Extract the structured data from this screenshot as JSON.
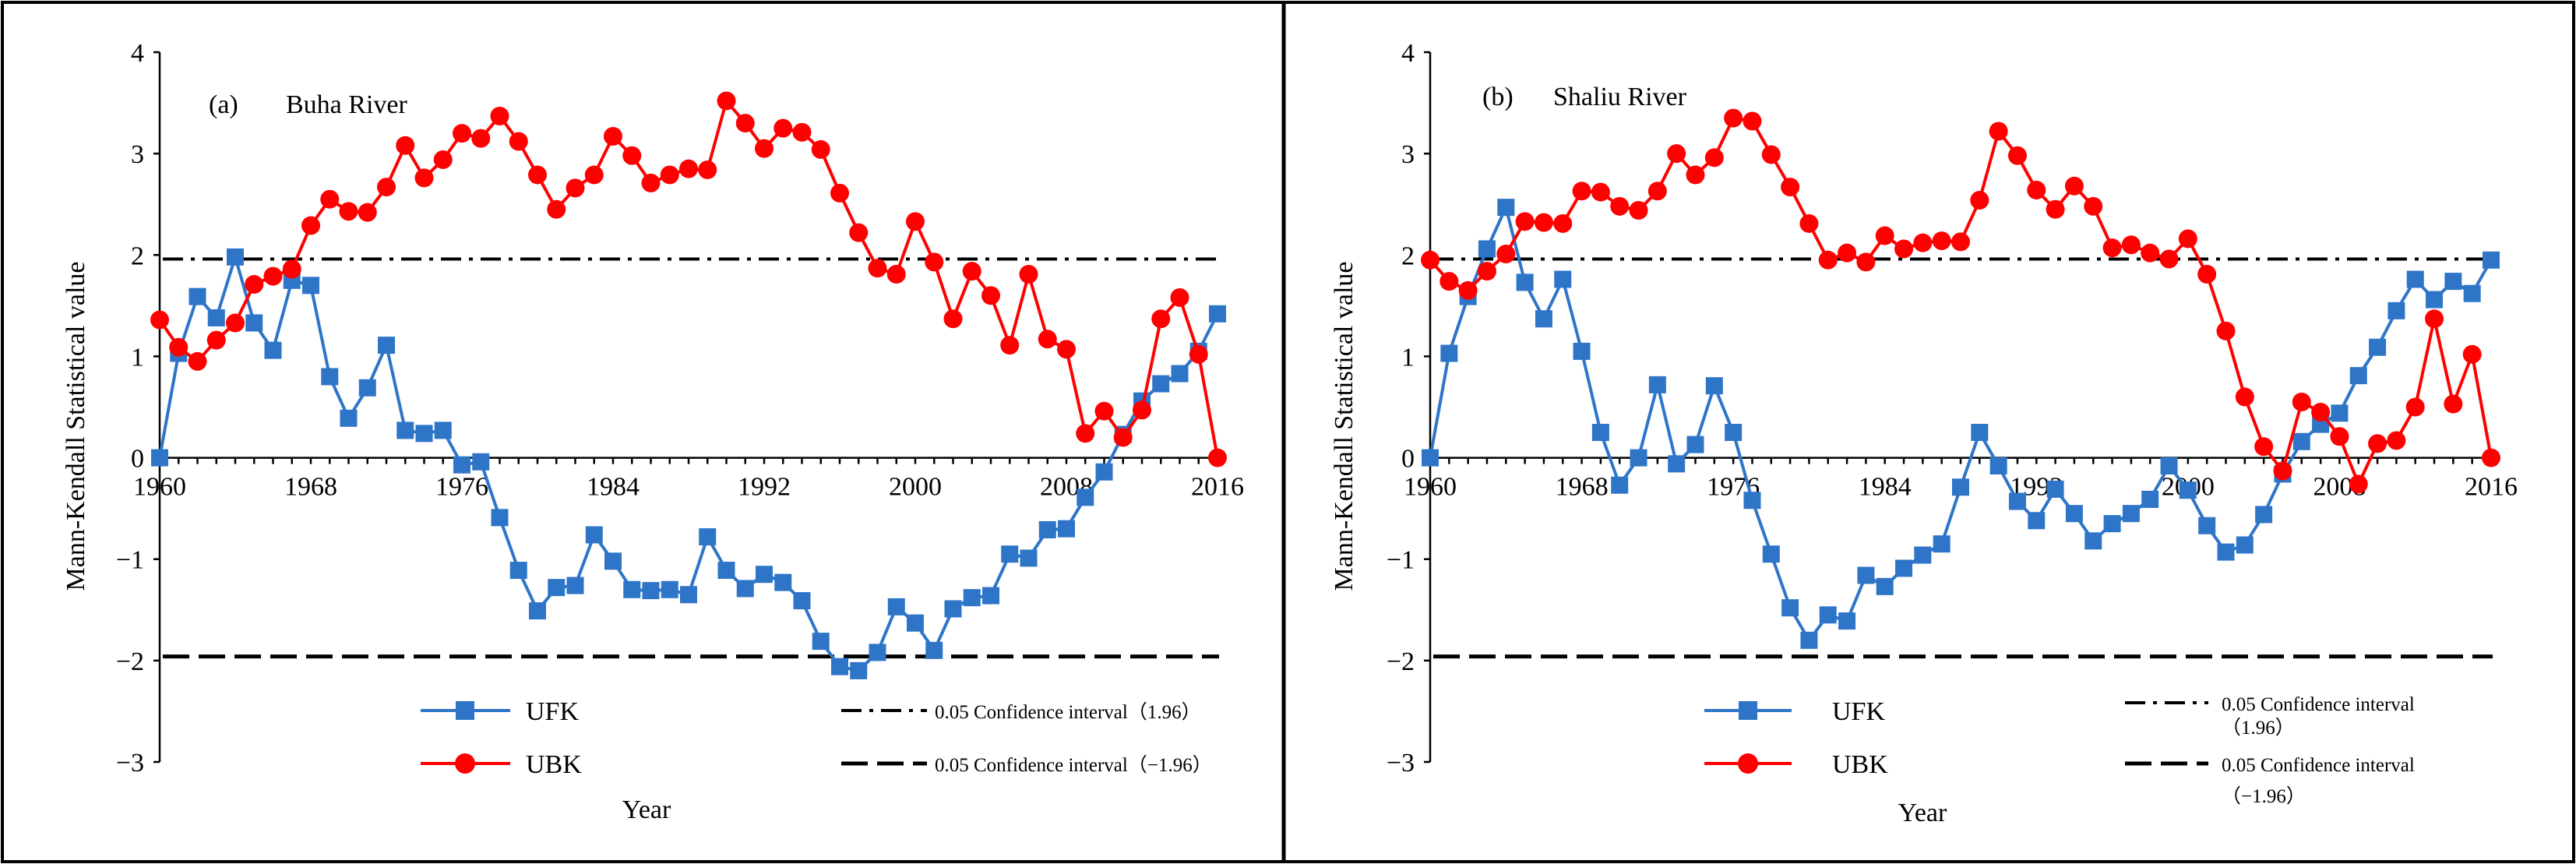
{
  "chart_data": [
    {
      "type": "line",
      "panel_label": "(a)",
      "title": "Buha River",
      "xlabel": "Year",
      "ylabel": "Mann-Kendall Statistical value",
      "ylim": [
        -3,
        4
      ],
      "yticks": [
        "4",
        "3",
        "2",
        "1",
        "0",
        "−1",
        "−2",
        "−3"
      ],
      "xlim": [
        1960,
        2016
      ],
      "xticks": [
        "1960",
        "1968",
        "1976",
        "1984",
        "1992",
        "2000",
        "2008",
        "2016"
      ],
      "x": [
        1960,
        1961,
        1962,
        1963,
        1964,
        1965,
        1966,
        1967,
        1968,
        1969,
        1970,
        1971,
        1972,
        1973,
        1974,
        1975,
        1976,
        1977,
        1978,
        1979,
        1980,
        1981,
        1982,
        1983,
        1984,
        1985,
        1986,
        1987,
        1988,
        1989,
        1990,
        1991,
        1992,
        1993,
        1994,
        1995,
        1996,
        1997,
        1998,
        1999,
        2000,
        2001,
        2002,
        2003,
        2004,
        2005,
        2006,
        2007,
        2008,
        2009,
        2010,
        2011,
        2012,
        2013,
        2014,
        2015,
        2016
      ],
      "series": [
        {
          "name": "UFK",
          "color": "#2E75C8",
          "marker": "square",
          "values": [
            0.0,
            1.03,
            1.59,
            1.38,
            1.98,
            1.33,
            1.06,
            1.75,
            1.7,
            0.8,
            0.39,
            0.69,
            1.11,
            0.27,
            0.24,
            0.27,
            -0.07,
            -0.04,
            -0.59,
            -1.11,
            -1.51,
            -1.28,
            -1.26,
            -0.76,
            -1.02,
            -1.3,
            -1.31,
            -1.3,
            -1.35,
            -0.78,
            -1.11,
            -1.29,
            -1.15,
            -1.23,
            -1.41,
            -1.81,
            -2.06,
            -2.1,
            -1.92,
            -1.47,
            -1.63,
            -1.9,
            -1.49,
            -1.38,
            -1.36,
            -0.95,
            -0.99,
            -0.71,
            -0.7,
            -0.39,
            -0.14,
            0.23,
            0.56,
            0.73,
            0.83,
            1.05,
            1.42
          ]
        },
        {
          "name": "UBK",
          "color": "#FF0000",
          "marker": "circle",
          "values": [
            1.36,
            1.09,
            0.95,
            1.16,
            1.33,
            1.71,
            1.79,
            1.86,
            2.29,
            2.55,
            2.43,
            2.42,
            2.67,
            3.08,
            2.76,
            2.94,
            3.2,
            3.15,
            3.37,
            3.12,
            2.79,
            2.45,
            2.66,
            2.79,
            3.17,
            2.98,
            2.71,
            2.79,
            2.85,
            2.84,
            3.52,
            3.3,
            3.05,
            3.25,
            3.21,
            3.04,
            2.61,
            2.22,
            1.87,
            1.81,
            2.33,
            1.93,
            1.37,
            1.84,
            1.6,
            1.11,
            1.81,
            1.17,
            1.07,
            0.24,
            0.46,
            0.2,
            0.47,
            1.37,
            1.58,
            1.02,
            0.0
          ]
        }
      ],
      "reference_lines": [
        {
          "label": "0.05 Confidence interval（1.96）",
          "value": 1.96,
          "style": "dash-dot"
        },
        {
          "label": "0.05 Confidence interval（−1.96）",
          "value": -1.96,
          "style": "dashed"
        }
      ]
    },
    {
      "type": "line",
      "panel_label": "(b)",
      "title": "Shaliu River",
      "xlabel": "Year",
      "ylabel": "Mann-Kendall Statistical value",
      "ylim": [
        -3,
        4
      ],
      "yticks": [
        "4",
        "3",
        "2",
        "1",
        "0",
        "−1",
        "−2",
        "−3"
      ],
      "xlim": [
        1960,
        2016
      ],
      "xticks": [
        "1960",
        "1968",
        "1976",
        "1984",
        "1992",
        "2000",
        "2008",
        "2016"
      ],
      "x": [
        1960,
        1961,
        1962,
        1963,
        1964,
        1965,
        1966,
        1967,
        1968,
        1969,
        1970,
        1971,
        1972,
        1973,
        1974,
        1975,
        1976,
        1977,
        1978,
        1979,
        1980,
        1981,
        1982,
        1983,
        1984,
        1985,
        1986,
        1987,
        1988,
        1989,
        1990,
        1991,
        1992,
        1993,
        1994,
        1995,
        1996,
        1997,
        1998,
        1999,
        2000,
        2001,
        2002,
        2003,
        2004,
        2005,
        2006,
        2007,
        2008,
        2009,
        2010,
        2011,
        2012,
        2013,
        2014,
        2015,
        2016
      ],
      "series": [
        {
          "name": "UFK",
          "color": "#2E75C8",
          "marker": "square",
          "values": [
            0.0,
            1.03,
            1.59,
            2.06,
            2.47,
            1.73,
            1.37,
            1.76,
            1.05,
            0.25,
            -0.27,
            0.0,
            0.72,
            -0.06,
            0.13,
            0.71,
            0.25,
            -0.42,
            -0.95,
            -1.48,
            -1.8,
            -1.55,
            -1.61,
            -1.16,
            -1.27,
            -1.09,
            -0.96,
            -0.85,
            -0.29,
            0.25,
            -0.08,
            -0.43,
            -0.62,
            -0.31,
            -0.55,
            -0.82,
            -0.65,
            -0.55,
            -0.41,
            -0.08,
            -0.32,
            -0.67,
            -0.93,
            -0.86,
            -0.56,
            -0.16,
            0.16,
            0.33,
            0.44,
            0.81,
            1.09,
            1.45,
            1.76,
            1.56,
            1.74,
            1.62,
            1.95
          ]
        },
        {
          "name": "UBK",
          "color": "#FF0000",
          "marker": "circle",
          "values": [
            1.95,
            1.74,
            1.65,
            1.84,
            2.01,
            2.33,
            2.32,
            2.31,
            2.63,
            2.62,
            2.48,
            2.44,
            2.63,
            3.0,
            2.79,
            2.96,
            3.35,
            3.32,
            2.99,
            2.67,
            2.31,
            1.95,
            2.02,
            1.93,
            2.19,
            2.06,
            2.12,
            2.14,
            2.13,
            2.54,
            3.22,
            2.98,
            2.64,
            2.45,
            2.68,
            2.48,
            2.07,
            2.1,
            2.02,
            1.96,
            2.16,
            1.81,
            1.25,
            0.6,
            0.11,
            -0.13,
            0.55,
            0.45,
            0.21,
            -0.26,
            0.14,
            0.17,
            0.5,
            1.37,
            0.53,
            1.02,
            0.0
          ]
        }
      ],
      "reference_lines": [
        {
          "label": "0.05 Confidence interval",
          "label_line2": "（1.96）",
          "value": 1.96,
          "style": "dash-dot"
        },
        {
          "label": "0.05 Confidence interval",
          "label_line2": "（−1.96）",
          "value": -1.96,
          "style": "dashed"
        }
      ]
    }
  ]
}
